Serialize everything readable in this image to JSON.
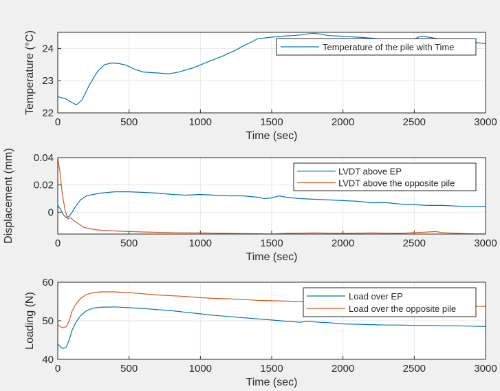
{
  "chart_data": [
    {
      "type": "line",
      "xlabel": "Time (sec)",
      "ylabel": "Temperature (°C)",
      "xlim": [
        0,
        3000
      ],
      "ylim": [
        22,
        24.5
      ],
      "xticks": [
        "0",
        "500",
        "1000",
        "1500",
        "2000",
        "2500",
        "3000"
      ],
      "yticks": [
        "22",
        "23",
        "24"
      ],
      "grid": true,
      "legend_position": "top-right",
      "series": [
        {
          "name": "Temperature of the pile with Time",
          "color": "#0072BD",
          "x": [
            0,
            50,
            100,
            130,
            170,
            220,
            280,
            330,
            380,
            430,
            480,
            540,
            600,
            700,
            780,
            850,
            950,
            1050,
            1150,
            1250,
            1300,
            1350,
            1400,
            1500,
            1600,
            1650,
            1700,
            1750,
            1800,
            1850,
            1900,
            2000,
            2100,
            2200,
            2300,
            2400,
            2500,
            2550,
            2600,
            2700,
            2800,
            2900,
            3000
          ],
          "values": [
            22.5,
            22.45,
            22.32,
            22.25,
            22.4,
            22.85,
            23.3,
            23.5,
            23.55,
            23.53,
            23.48,
            23.35,
            23.27,
            23.24,
            23.21,
            23.27,
            23.4,
            23.58,
            23.75,
            23.95,
            24.08,
            24.18,
            24.3,
            24.35,
            24.39,
            24.4,
            24.42,
            24.45,
            24.47,
            24.44,
            24.4,
            24.38,
            24.35,
            24.32,
            24.29,
            24.27,
            24.3,
            24.38,
            24.35,
            24.28,
            24.22,
            24.2,
            24.15
          ]
        }
      ]
    },
    {
      "type": "line",
      "xlabel": "Time (sec)",
      "ylabel": "Displacement (mm)",
      "xlim": [
        0,
        3000
      ],
      "ylim": [
        -0.016,
        0.04
      ],
      "xticks": [
        "0",
        "500",
        "1000",
        "1500",
        "2000",
        "2500",
        "3000"
      ],
      "yticks": [
        "0",
        "0.02",
        "0.04"
      ],
      "grid": true,
      "legend_position": "top-right",
      "series": [
        {
          "name": "LVDT above EP",
          "color": "#0072BD",
          "x": [
            0,
            20,
            40,
            60,
            80,
            100,
            130,
            160,
            200,
            250,
            300,
            400,
            500,
            600,
            700,
            800,
            900,
            1000,
            1100,
            1200,
            1300,
            1400,
            1450,
            1500,
            1550,
            1600,
            1700,
            1800,
            1900,
            2000,
            2100,
            2200,
            2300,
            2400,
            2500,
            2600,
            2700,
            2800,
            2900,
            3000
          ],
          "values": [
            0.005,
            0.002,
            -0.002,
            -0.004,
            -0.003,
            0.0,
            0.005,
            0.009,
            0.012,
            0.013,
            0.014,
            0.015,
            0.015,
            0.0145,
            0.014,
            0.013,
            0.0125,
            0.013,
            0.0125,
            0.012,
            0.012,
            0.011,
            0.01,
            0.0105,
            0.012,
            0.011,
            0.01,
            0.0095,
            0.009,
            0.0085,
            0.008,
            0.007,
            0.007,
            0.006,
            0.0055,
            0.005,
            0.005,
            0.0045,
            0.004,
            0.004
          ]
        },
        {
          "name": "LVDT above the opposite pile",
          "color": "#D95319",
          "x": [
            0,
            15,
            30,
            50,
            70,
            90,
            110,
            140,
            180,
            220,
            280,
            350,
            450,
            600,
            800,
            1000,
            1200,
            1400,
            1500,
            1600,
            1800,
            2000,
            2200,
            2400,
            2600,
            2650,
            2700,
            2800,
            2900,
            3000
          ],
          "values": [
            0.039,
            0.03,
            0.015,
            0.002,
            -0.005,
            -0.004,
            -0.006,
            -0.008,
            -0.011,
            -0.012,
            -0.013,
            -0.0135,
            -0.014,
            -0.0145,
            -0.015,
            -0.0152,
            -0.0155,
            -0.0158,
            -0.016,
            -0.0155,
            -0.0152,
            -0.0155,
            -0.0152,
            -0.0155,
            -0.0145,
            -0.0142,
            -0.015,
            -0.0155,
            -0.0158,
            -0.016
          ]
        }
      ]
    },
    {
      "type": "line",
      "xlabel": "Time (sec)",
      "ylabel": "Loading (N)",
      "xlim": [
        0,
        3000
      ],
      "ylim": [
        40,
        60
      ],
      "xticks": [
        "0",
        "500",
        "1000",
        "1500",
        "2000",
        "2500",
        "3000"
      ],
      "yticks": [
        "40",
        "50",
        "60"
      ],
      "grid": true,
      "legend_position": "top-right",
      "series": [
        {
          "name": "Load over EP",
          "color": "#0072BD",
          "x": [
            0,
            20,
            40,
            60,
            80,
            100,
            130,
            160,
            200,
            250,
            300,
            350,
            400,
            500,
            600,
            700,
            800,
            900,
            1000,
            1100,
            1200,
            1300,
            1400,
            1500,
            1600,
            1700,
            1750,
            1800,
            1900,
            2000,
            2100,
            2200,
            2300,
            2400,
            2500,
            2600,
            2700,
            2800,
            2900,
            3000
          ],
          "values": [
            44,
            43.2,
            42.8,
            43.2,
            45,
            47.5,
            49.8,
            51.3,
            52.6,
            53.3,
            53.5,
            53.55,
            53.6,
            53.4,
            53.2,
            52.9,
            52.6,
            52.2,
            51.8,
            51.4,
            51.1,
            50.8,
            50.5,
            50.2,
            49.9,
            49.6,
            49.9,
            49.7,
            49.5,
            49.2,
            49.1,
            49.0,
            48.9,
            48.9,
            48.8,
            48.8,
            48.7,
            48.7,
            48.6,
            48.5
          ]
        },
        {
          "name": "Load over the opposite pile",
          "color": "#D95319",
          "x": [
            0,
            20,
            40,
            60,
            80,
            100,
            130,
            160,
            200,
            250,
            300,
            400,
            500,
            600,
            700,
            800,
            900,
            1000,
            1100,
            1200,
            1300,
            1400,
            1500,
            1600,
            1700,
            1800,
            1900,
            2000,
            2100,
            2200,
            2300,
            2400,
            2500,
            2600,
            2700,
            2800,
            2900,
            3000
          ],
          "values": [
            49,
            48.4,
            48.2,
            48.5,
            50,
            52.5,
            54.5,
            55.8,
            56.8,
            57.3,
            57.5,
            57.5,
            57.3,
            57.0,
            56.7,
            56.5,
            56.3,
            56.0,
            55.8,
            55.7,
            55.5,
            55.3,
            55.2,
            55.1,
            55.0,
            54.9,
            54.8,
            54.7,
            54.6,
            54.5,
            54.4,
            54.3,
            54.2,
            54.1,
            54.0,
            53.9,
            53.8,
            53.7
          ]
        }
      ]
    }
  ]
}
